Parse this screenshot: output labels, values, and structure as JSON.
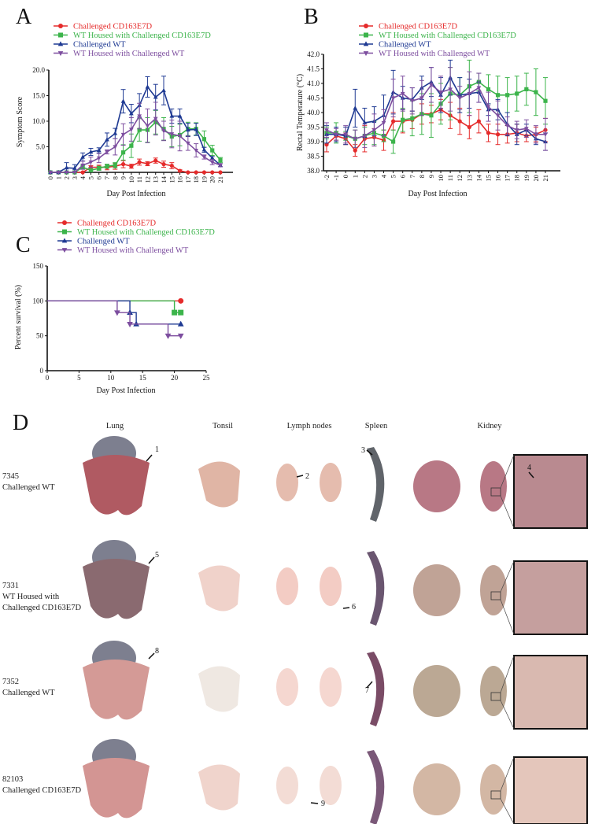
{
  "colors": {
    "challenged_cd163e7d": "#e52b2b",
    "wt_housed_cd163e7d": "#3cb44b",
    "challenged_wt": "#1f3a93",
    "wt_housed_wt": "#7d4e9f"
  },
  "chart_data": [
    {
      "panel": "A",
      "type": "line",
      "xlabel": "Day Post Infection",
      "ylabel": "Symptom Score",
      "x": [
        0,
        1,
        2,
        3,
        4,
        5,
        6,
        7,
        8,
        9,
        10,
        11,
        12,
        13,
        14,
        15,
        16,
        17,
        18,
        19,
        20,
        21
      ],
      "yticks": [
        "5.0",
        "10.0",
        "15.0",
        "20.0"
      ],
      "ylim": [
        0,
        20
      ],
      "grid": false,
      "legend_position": "top",
      "series": [
        {
          "name": "Challenged CD163E7D",
          "marker": "circle",
          "color": "#e52b2b",
          "values": [
            0,
            0,
            0,
            0,
            0,
            1,
            1,
            1,
            1.2,
            1.6,
            1.2,
            2,
            1.7,
            2.3,
            1.6,
            1.3,
            0.3,
            0,
            0,
            0,
            0,
            0
          ],
          "error": [
            0,
            0,
            0,
            0,
            0,
            0.3,
            0.4,
            0.5,
            0.6,
            0.7,
            0.4,
            0.6,
            0.4,
            0.5,
            0.6,
            0.6,
            0.2,
            0,
            0,
            0,
            0,
            0
          ]
        },
        {
          "name": "WT Housed with Challenged CD163E7D",
          "marker": "square",
          "color": "#3cb44b",
          "values": [
            0,
            0,
            0,
            0,
            1,
            0.4,
            0.8,
            1.2,
            1.4,
            3.9,
            5.2,
            8.3,
            8.3,
            9.8,
            8.5,
            7,
            7.3,
            8.5,
            8.5,
            6.5,
            4.3,
            2.4
          ],
          "error": [
            0,
            0,
            0,
            0,
            0.4,
            0.3,
            0.4,
            0.4,
            0.5,
            1.5,
            2.3,
            2.2,
            2.4,
            2.3,
            2.2,
            2,
            2.1,
            1.3,
            1.2,
            1.6,
            1,
            0.5
          ]
        },
        {
          "name": "Challenged WT",
          "marker": "triangle-up",
          "color": "#1f3a93",
          "values": [
            0,
            0,
            0.9,
            0.8,
            3,
            4,
            4.3,
            6.4,
            7.6,
            13.9,
            11.5,
            13.1,
            16.7,
            14.7,
            16,
            11,
            11,
            8.3,
            8.4,
            4.4,
            2.8,
            1.4
          ],
          "error": [
            0,
            0,
            1,
            0.7,
            0.8,
            0.7,
            0.5,
            1.3,
            1,
            2.3,
            1.8,
            2.3,
            2,
            2.5,
            2.8,
            1.4,
            1.4,
            1.3,
            1.2,
            0.5,
            0.3,
            0.3
          ]
        },
        {
          "name": "WT Housed with Challenged WT",
          "marker": "triangle-down",
          "color": "#7d4e9f",
          "values": [
            0,
            0,
            0,
            0,
            1.4,
            2,
            2.8,
            4,
            5,
            7.4,
            8.4,
            11,
            9.1,
            10.5,
            8.1,
            7.5,
            7.1,
            5.7,
            4.3,
            3,
            2,
            1.4
          ],
          "error": [
            0,
            0,
            0,
            0,
            0.8,
            1,
            0.9,
            0.4,
            1.6,
            2.1,
            2.3,
            2.5,
            3.3,
            3.2,
            1.9,
            2.7,
            2.9,
            1.4,
            1.3,
            0.4,
            0.5,
            0.3
          ]
        }
      ]
    },
    {
      "panel": "B",
      "type": "line",
      "xlabel": "Day Post Infection",
      "ylabel": "Rectal Temperature (°C)",
      "x": [
        -2,
        -1,
        0,
        1,
        2,
        3,
        4,
        5,
        6,
        7,
        8,
        9,
        10,
        11,
        12,
        13,
        14,
        15,
        16,
        17,
        18,
        19,
        20,
        21
      ],
      "yticks": [
        "38.0",
        "38.5",
        "39.0",
        "39.5",
        "40.0",
        "40.5",
        "41.0",
        "41.5",
        "42.0"
      ],
      "ylim": [
        38,
        42
      ],
      "grid": false,
      "legend_position": "top",
      "series": [
        {
          "name": "Challenged CD163E7D",
          "marker": "circle",
          "color": "#e52b2b",
          "values": [
            38.9,
            39.2,
            39.1,
            38.7,
            39.1,
            39.15,
            39.05,
            39.7,
            39.7,
            39.75,
            39.95,
            39.95,
            40.1,
            39.9,
            39.7,
            39.5,
            39.7,
            39.3,
            39.25,
            39.25,
            39.3,
            39.2,
            39.25,
            39.4
          ],
          "error": [
            0.25,
            0.15,
            0.2,
            0.2,
            0.45,
            0.3,
            0.35,
            0.3,
            0.4,
            0.3,
            0.35,
            0.3,
            0.35,
            0.45,
            0.45,
            0.4,
            0.4,
            0.3,
            0.35,
            0.3,
            0.3,
            0.2,
            0.25,
            0.4
          ]
        },
        {
          "name": "WT Housed with Challenged CD163E7D",
          "marker": "square",
          "color": "#3cb44b",
          "values": [
            39.3,
            39.3,
            39.2,
            39.1,
            39.2,
            39.3,
            39.2,
            39.0,
            39.75,
            39.8,
            39.95,
            39.9,
            40.3,
            40.65,
            40.6,
            40.9,
            41.05,
            40.8,
            40.6,
            40.6,
            40.65,
            40.8,
            40.7,
            40.4
          ],
          "error": [
            0.2,
            0.35,
            0.15,
            0.3,
            0.3,
            0.4,
            0.2,
            0.4,
            0.4,
            0.6,
            0.7,
            0.75,
            0.7,
            0.9,
            0.6,
            0.9,
            0.3,
            0.5,
            0.65,
            0.6,
            0.6,
            0.55,
            0.8,
            0.8
          ]
        },
        {
          "name": "Challenged WT",
          "marker": "triangle-up",
          "color": "#1f3a93",
          "values": [
            39.25,
            39.25,
            39.2,
            40.15,
            39.65,
            39.7,
            39.9,
            40.7,
            40.5,
            40.45,
            40.85,
            41.05,
            40.6,
            41.2,
            40.6,
            40.65,
            40.7,
            40.1,
            40.1,
            39.6,
            39.25,
            39.4,
            39.1,
            39.0
          ],
          "error": [
            0.3,
            0.25,
            0.3,
            0.65,
            0.5,
            0.5,
            0.7,
            0.75,
            0.4,
            0.4,
            0.4,
            0.5,
            0.6,
            0.6,
            0.6,
            0.5,
            0.35,
            0.2,
            0.35,
            0.4,
            0.35,
            0.2,
            0.2,
            0.3
          ]
        },
        {
          "name": "WT Housed with Challenged WT",
          "marker": "triangle-down",
          "color": "#7d4e9f",
          "values": [
            39.4,
            39.25,
            39.25,
            39.1,
            39.2,
            39.4,
            39.65,
            40.5,
            40.65,
            40.4,
            40.5,
            40.95,
            40.7,
            40.8,
            40.5,
            40.65,
            40.85,
            40.2,
            39.9,
            39.55,
            39.4,
            39.45,
            39.25,
            39.25
          ],
          "error": [
            0.25,
            0.2,
            0.3,
            0.3,
            0.4,
            0.55,
            0.45,
            0.65,
            0.6,
            0.45,
            0.6,
            0.6,
            0.55,
            0.75,
            0.4,
            0.75,
            0.5,
            0.5,
            0.5,
            0.3,
            0.3,
            0.3,
            0.3,
            0.55
          ]
        }
      ]
    },
    {
      "panel": "C",
      "type": "line",
      "step": true,
      "xlabel": "Day Post Infection",
      "ylabel": "Percent survival (%)",
      "xticks": [
        "0",
        "5",
        "10",
        "15",
        "20",
        "25"
      ],
      "yticks": [
        "0",
        "50",
        "100",
        "150"
      ],
      "xlim": [
        0,
        25
      ],
      "ylim": [
        0,
        150
      ],
      "grid": false,
      "legend_position": "top",
      "series": [
        {
          "name": "Challenged CD163E7D",
          "marker": "circle",
          "color": "#e52b2b",
          "points": [
            [
              0,
              100
            ],
            [
              21,
              100
            ]
          ],
          "censored": [
            [
              21,
              100
            ]
          ]
        },
        {
          "name": "WT Housed with Challenged CD163E7D",
          "marker": "square",
          "color": "#3cb44b",
          "points": [
            [
              0,
              100
            ],
            [
              20,
              100
            ],
            [
              20,
              83.3
            ],
            [
              21,
              83.3
            ]
          ],
          "censored": [
            [
              20,
              83.3
            ],
            [
              21,
              83.3
            ]
          ]
        },
        {
          "name": "Challenged WT",
          "marker": "triangle-up",
          "color": "#1f3a93",
          "points": [
            [
              0,
              100
            ],
            [
              13,
              100
            ],
            [
              13,
              83.3
            ],
            [
              14,
              83.3
            ],
            [
              14,
              66.7
            ],
            [
              21,
              66.7
            ]
          ],
          "censored": [
            [
              13,
              83.3
            ],
            [
              14,
              66.7
            ],
            [
              21,
              66.7
            ]
          ]
        },
        {
          "name": "WT Housed with Challenged WT",
          "marker": "triangle-down",
          "color": "#7d4e9f",
          "points": [
            [
              0,
              100
            ],
            [
              11,
              100
            ],
            [
              11,
              83.3
            ],
            [
              13,
              83.3
            ],
            [
              13,
              66.7
            ],
            [
              19,
              66.7
            ],
            [
              19,
              50
            ],
            [
              21,
              50
            ]
          ],
          "censored": [
            [
              11,
              83.3
            ],
            [
              13,
              66.7
            ],
            [
              19,
              50
            ],
            [
              21,
              50
            ]
          ]
        }
      ]
    }
  ],
  "panel_d": {
    "letter": "D",
    "columns": [
      "Lung",
      "Tonsil",
      "Lymph nodes",
      "Spleen",
      "Kidney"
    ],
    "rows": [
      {
        "id": "7345",
        "lines": [
          "Challenged WT"
        ]
      },
      {
        "id": "7331",
        "lines": [
          "WT Housed with",
          "Challenged CD163E7D"
        ]
      },
      {
        "id": "7352",
        "lines": [
          "Challenged WT"
        ]
      },
      {
        "id": "82103",
        "lines": [
          "Challenged CD163E7D"
        ]
      }
    ],
    "annotations": [
      "1",
      "2",
      "3",
      "4",
      "5",
      "6",
      "7",
      "8",
      "9"
    ]
  }
}
